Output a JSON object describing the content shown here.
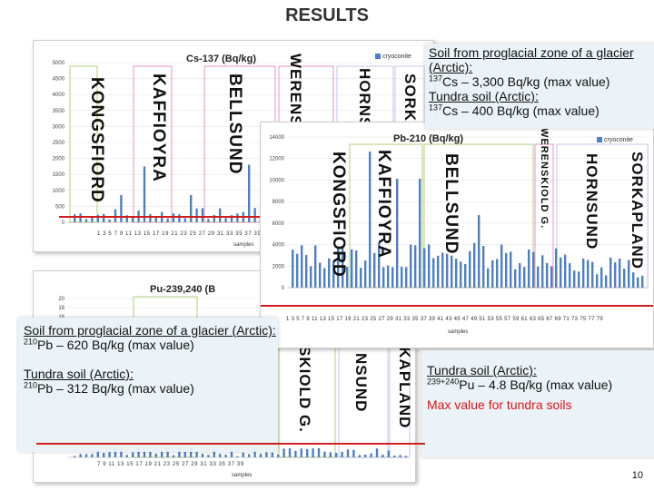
{
  "slide": {
    "title": "RESULTS",
    "page_number": "10"
  },
  "colors": {
    "bar": "#4f7fbf",
    "max_line": "#d11f1f",
    "panel_bg": "#eaf2f8"
  },
  "charts": {
    "cs": {
      "title": "Cs-137 (Bq/kg)",
      "legend": "cryoconite",
      "xlabel": "samples",
      "yticks": [
        "0",
        "500",
        "1000",
        "1500",
        "2000",
        "2500",
        "3000",
        "3500",
        "4000",
        "4500",
        "5000"
      ],
      "xticks": "1 3 5 7 9 11 13 15 17 19 21 23 25 27 29 31 33 35 37 39",
      "regions": [
        "KONGSFIORD",
        "KAFFIOYRA",
        "BELLSUND",
        "WERENS",
        "HORNS",
        "SORK"
      ]
    },
    "pb": {
      "title": "Pb-210 (Bq/kg)",
      "legend": "cryoconite",
      "xlabel": "samples",
      "yticks": [
        "0",
        "2000",
        "4000",
        "6000",
        "8000",
        "10000",
        "12000",
        "14000"
      ],
      "xticks": "1 3 5 7 9 11 13 15 17 19 21 23 25 27 29 31 33 35 37 39 41 43 45 47 49 51 53 55 57 59 61 63 65 67 69 71 73 75 77 79",
      "regions": [
        "KONGSFIORD",
        "KAFFIOYRA",
        "BELLSUND",
        "WERENSKIOLD G.",
        "HORNSUND",
        "SORKAPLAND"
      ]
    },
    "pu": {
      "title": "Pu-239,240 (B",
      "xlabel": "samples",
      "yticks": [
        "20",
        "18",
        "16"
      ],
      "xticks": "7 9 11 13 15 17 19 21 23 25 27 29 31 33 35 37 39",
      "regions": [
        "SKIOLD G.",
        "NSUND",
        "RKAPLAND"
      ]
    }
  },
  "panels": {
    "cs_panel": {
      "line1": "Soil from proglacial zone of a glacier (Arctic):",
      "line2_sup": "137",
      "line2": "Cs – 3,300 Bq/kg (max value)",
      "line3": "Tundra soil (Arctic):",
      "line4_sup": "137",
      "line4": "Cs – 400  Bq/kg (max value)"
    },
    "pb_panel": {
      "line1": "Soil from proglacial zone of a glacier (Arctic):",
      "line2_sup": "210",
      "line2": "Pb – 620 Bq/kg (max value)",
      "line3": "Tundra soil (Arctic):",
      "line4_sup": "210",
      "line4": "Pb – 312 Bq/kg (max value)"
    },
    "pu_panel": {
      "line1": "Tundra soil (Arctic):",
      "line2_sup": "239+240",
      "line2": "Pu – 4.8 Bq/kg (max value)",
      "note": "Max value for tundra soils"
    }
  }
}
